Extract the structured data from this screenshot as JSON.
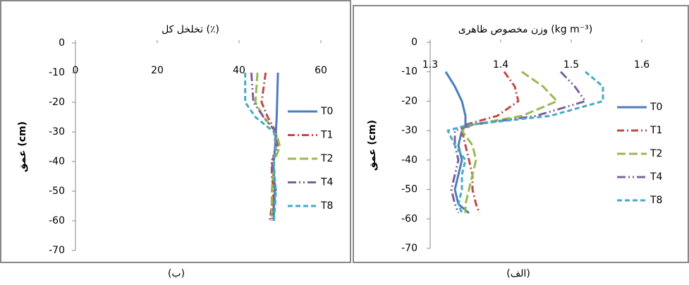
{
  "chart_data": [
    {
      "type": "line",
      "title": "تخلخل کل (٪)",
      "y_label": "عمق (cm)",
      "caption": "(ب)",
      "xlim": [
        0,
        60
      ],
      "xticks": [
        0,
        20,
        40,
        60
      ],
      "ylim": [
        -70,
        0
      ],
      "yticks": [
        0,
        -10,
        -20,
        -30,
        -40,
        -50,
        -60,
        -70
      ],
      "y": [
        -10,
        -20,
        -25,
        -30,
        -35,
        -40,
        -45,
        -50,
        -55,
        -60
      ],
      "series": [
        {
          "name": "T0",
          "color": "#4a7ebb",
          "dash": "",
          "values": [
            49.5,
            49.3,
            49.2,
            49,
            48.8,
            48.5,
            48.5,
            48.7,
            48.5,
            48.5
          ]
        },
        {
          "name": "T1",
          "color": "#be4b48",
          "dash": "10,4,2,4",
          "values": [
            46.5,
            45.5,
            47,
            49,
            49.5,
            48,
            48,
            48.5,
            48,
            47.5
          ]
        },
        {
          "name": "T2",
          "color": "#98b954",
          "dash": "12,5",
          "values": [
            44.5,
            44,
            46,
            49,
            50,
            48.5,
            48.3,
            48,
            48,
            48
          ]
        },
        {
          "name": "T4",
          "color": "#7d60a0",
          "dash": "12,4,2,4,2,4",
          "values": [
            43,
            43.5,
            46,
            49,
            49,
            48,
            48.5,
            49,
            48.5,
            48
          ]
        },
        {
          "name": "T8",
          "color": "#46aac5",
          "dash": "7,4",
          "values": [
            41.5,
            41.5,
            44,
            48.5,
            49,
            48.5,
            48.7,
            49,
            48.8,
            48.5
          ]
        }
      ]
    },
    {
      "type": "line",
      "title": "وزن مخصوص ظاهری (kg m⁻³)",
      "y_label": "عمق (cm)",
      "caption": "(الف)",
      "xlim": [
        1.3,
        1.6
      ],
      "xticks": [
        1.3,
        1.4,
        1.5,
        1.6
      ],
      "ylim": [
        -70,
        0
      ],
      "yticks": [
        0,
        -10,
        -20,
        -30,
        -40,
        -50,
        -60,
        -70
      ],
      "y": [
        -10,
        -15,
        -20,
        -25,
        -28,
        -30,
        -35,
        -40,
        -45,
        -50,
        -55,
        -58
      ],
      "series": [
        {
          "name": "T0",
          "color": "#4a7ebb",
          "dash": "",
          "values": [
            1.322,
            1.335,
            1.345,
            1.35,
            1.35,
            1.345,
            1.34,
            1.345,
            1.34,
            1.335,
            1.34,
            1.355
          ]
        },
        {
          "name": "T1",
          "color": "#be4b48",
          "dash": "10,4,2,4",
          "values": [
            1.405,
            1.42,
            1.425,
            1.395,
            1.35,
            1.345,
            1.35,
            1.355,
            1.36,
            1.36,
            1.365,
            1.37
          ]
        },
        {
          "name": "T2",
          "color": "#98b954",
          "dash": "12,5",
          "values": [
            1.43,
            1.46,
            1.48,
            1.43,
            1.36,
            1.345,
            1.36,
            1.365,
            1.36,
            1.355,
            1.35,
            1.35
          ]
        },
        {
          "name": "T4",
          "color": "#7d60a0",
          "dash": "12,4,2,4,2,4",
          "values": [
            1.485,
            1.505,
            1.52,
            1.45,
            1.36,
            1.335,
            1.335,
            1.34,
            1.335,
            1.33,
            1.335,
            1.34
          ]
        },
        {
          "name": "T8",
          "color": "#46aac5",
          "dash": "7,4",
          "values": [
            1.52,
            1.545,
            1.545,
            1.47,
            1.355,
            1.325,
            1.335,
            1.35,
            1.345,
            1.345,
            1.34,
            1.345
          ]
        }
      ]
    }
  ]
}
